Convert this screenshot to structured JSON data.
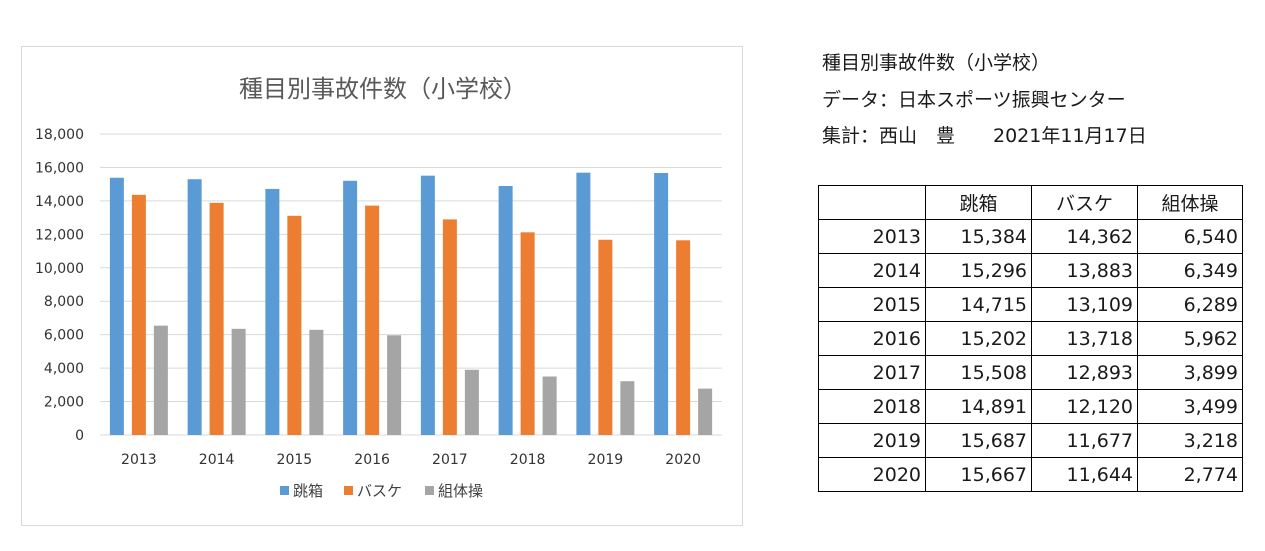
{
  "chart_data": {
    "type": "bar",
    "title": "種目別事故件数（小学校）",
    "categories": [
      "2013",
      "2014",
      "2015",
      "2016",
      "2017",
      "2018",
      "2019",
      "2020"
    ],
    "series": [
      {
        "name": "跳箱",
        "color": "#5b9bd5",
        "values": [
          15384,
          15296,
          14715,
          15202,
          15508,
          14891,
          15687,
          15667
        ]
      },
      {
        "name": "バスケ",
        "color": "#ed7d31",
        "values": [
          14362,
          13883,
          13109,
          13718,
          12893,
          12120,
          11677,
          11644
        ]
      },
      {
        "name": "組体操",
        "color": "#a5a5a5",
        "values": [
          6540,
          6349,
          6289,
          5962,
          3899,
          3499,
          3218,
          2774
        ]
      }
    ],
    "ylim": [
      0,
      18000
    ],
    "yticks": [
      "0",
      "2,000",
      "4,000",
      "6,000",
      "8,000",
      "10,000",
      "12,000",
      "14,000",
      "16,000",
      "18,000"
    ],
    "ytick_values": [
      0,
      2000,
      4000,
      6000,
      8000,
      10000,
      12000,
      14000,
      16000,
      18000
    ],
    "grid": true,
    "legend": "bottom"
  },
  "info": {
    "title": "種目別事故件数（小学校）",
    "source": "データ：日本スポーツ振興センター",
    "author": "集計：西山　豊　　2021年11月17日"
  },
  "table": {
    "headers": [
      "",
      "跳箱",
      "バスケ",
      "組体操"
    ],
    "rows": [
      [
        "2013",
        "15,384",
        "14,362",
        "6,540"
      ],
      [
        "2014",
        "15,296",
        "13,883",
        "6,349"
      ],
      [
        "2015",
        "14,715",
        "13,109",
        "6,289"
      ],
      [
        "2016",
        "15,202",
        "13,718",
        "5,962"
      ],
      [
        "2017",
        "15,508",
        "12,893",
        "3,899"
      ],
      [
        "2018",
        "14,891",
        "12,120",
        "3,499"
      ],
      [
        "2019",
        "15,687",
        "11,677",
        "3,218"
      ],
      [
        "2020",
        "15,667",
        "11,644",
        "2,774"
      ]
    ]
  }
}
